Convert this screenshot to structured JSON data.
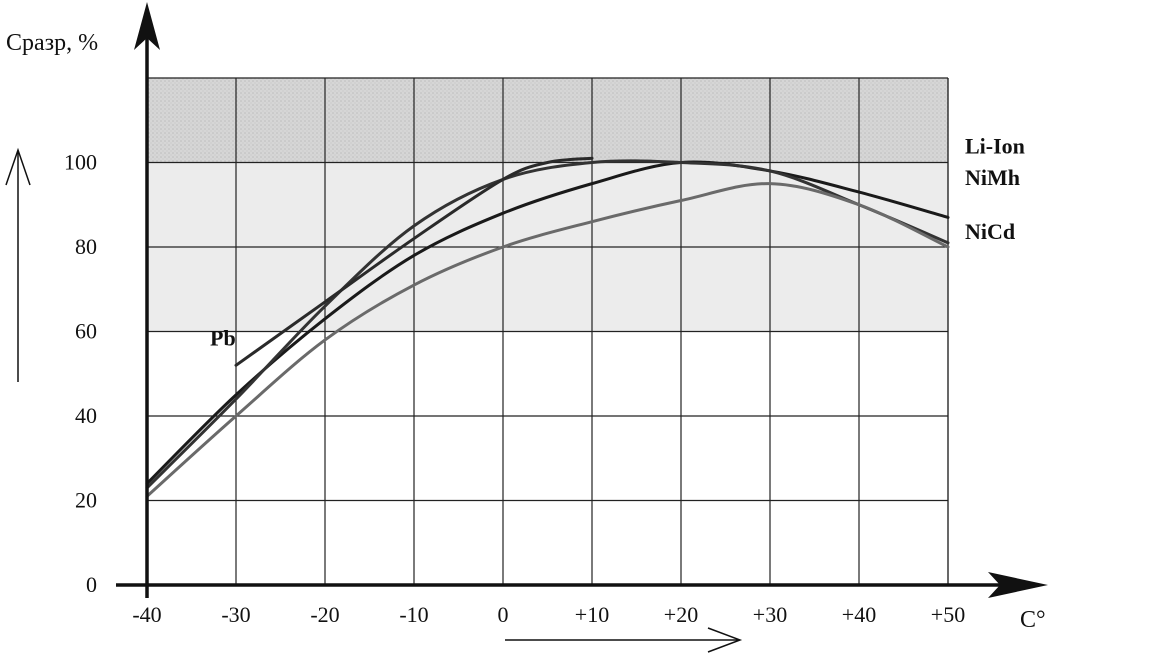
{
  "chart_data": {
    "type": "line",
    "ylabel": "Cразр, %",
    "xlabel": "C°",
    "xlim": [
      -40,
      50
    ],
    "ylim": [
      0,
      120
    ],
    "grid": true,
    "x_ticks": [
      -40,
      -30,
      -20,
      -10,
      0,
      10,
      20,
      30,
      40,
      50
    ],
    "x_tick_labels": [
      "-40",
      "-30",
      "-20",
      "-10",
      "0",
      "+10",
      "+20",
      "+30",
      "+40",
      "+50"
    ],
    "y_ticks": [
      0,
      20,
      40,
      60,
      80,
      100
    ],
    "y_tick_labels": [
      "0",
      "20",
      "40",
      "60",
      "80",
      "100"
    ],
    "series": [
      {
        "name": "Li-Ion",
        "color": "#1a1a1a",
        "x": [
          -40,
          -30,
          -20,
          -10,
          0,
          10,
          20,
          30,
          40,
          50
        ],
        "y": [
          24,
          45,
          63,
          78,
          88,
          95,
          100,
          98,
          93,
          87
        ]
      },
      {
        "name": "NiMh",
        "color": "#333333",
        "x": [
          -40,
          -30,
          -20,
          -10,
          0,
          10,
          20,
          30,
          40,
          50
        ],
        "y": [
          23,
          44,
          66,
          85,
          96,
          100,
          100,
          98,
          90,
          81
        ]
      },
      {
        "name": "NiCd",
        "color": "#6a6a6a",
        "x": [
          -40,
          -30,
          -20,
          -10,
          0,
          10,
          20,
          30,
          40,
          50
        ],
        "y": [
          21,
          40,
          58,
          71,
          80,
          86,
          91,
          95,
          90,
          80
        ]
      },
      {
        "name": "Pb",
        "color": "#2a2a2a",
        "x": [
          -30,
          -20,
          -10,
          0,
          5,
          10
        ],
        "y": [
          52,
          67,
          82,
          96,
          100,
          101
        ]
      }
    ]
  }
}
